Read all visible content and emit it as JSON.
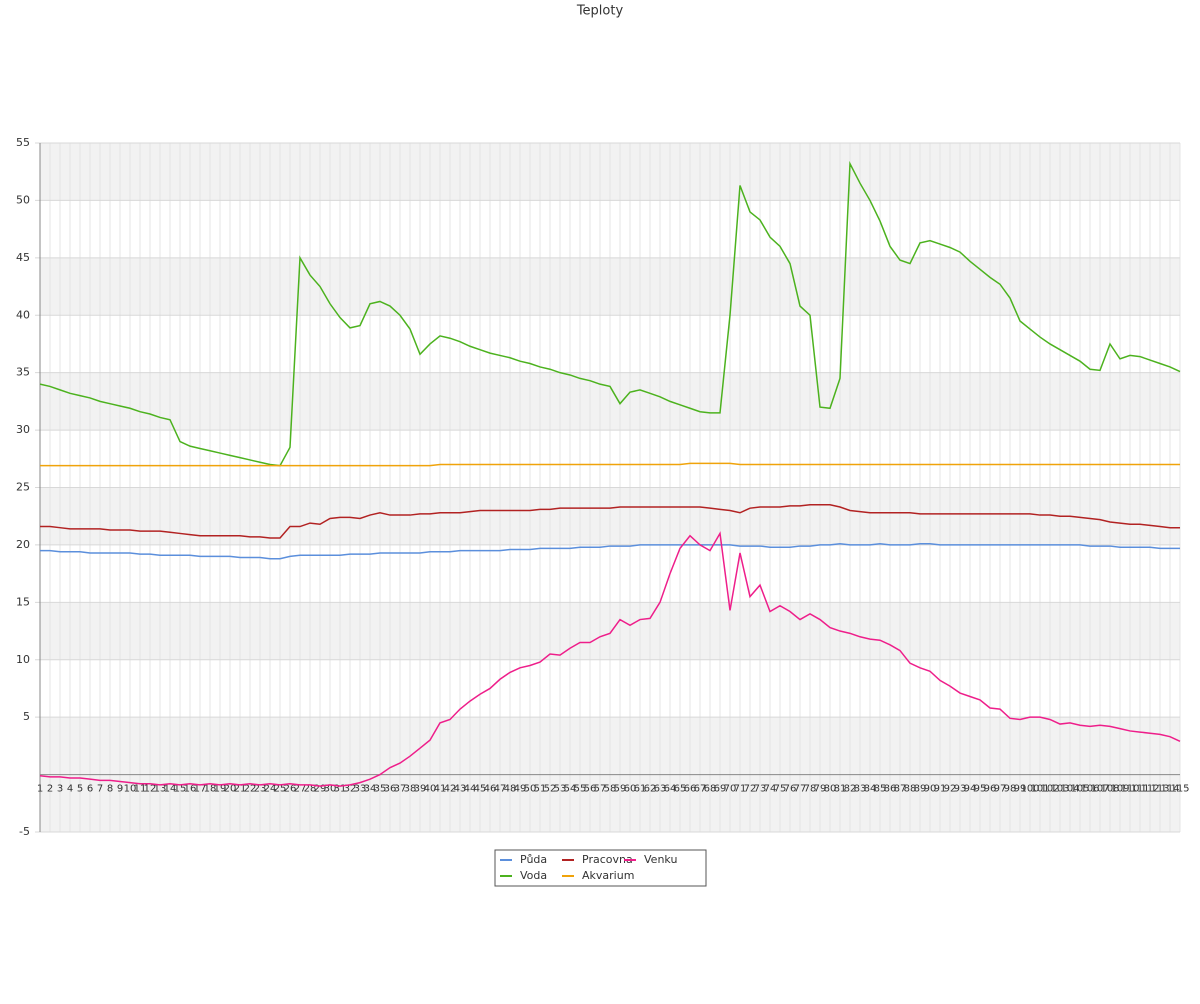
{
  "chart_data": {
    "type": "line",
    "title": "Teploty",
    "categories": [
      1,
      2,
      3,
      4,
      5,
      6,
      7,
      8,
      9,
      10,
      11,
      12,
      13,
      14,
      15,
      16,
      17,
      18,
      19,
      20,
      21,
      22,
      23,
      24,
      25,
      26,
      27,
      28,
      29,
      30,
      31,
      32,
      33,
      34,
      35,
      36,
      37,
      38,
      39,
      40,
      41,
      42,
      43,
      44,
      45,
      46,
      47,
      48,
      49,
      50,
      51,
      52,
      53,
      54,
      55,
      56,
      57,
      58,
      59,
      60,
      61,
      62,
      63,
      64,
      65,
      66,
      67,
      68,
      69,
      70,
      71,
      72,
      73,
      74,
      75,
      76,
      77,
      78,
      79,
      80,
      81,
      82,
      83,
      84,
      85,
      86,
      87,
      88,
      89,
      90,
      91,
      92,
      93,
      94,
      95,
      96,
      97,
      98,
      99,
      100,
      101,
      102,
      103,
      104,
      105,
      106,
      107,
      108,
      109,
      110,
      111,
      112,
      113,
      114,
      115
    ],
    "ylim": [
      -5,
      55
    ],
    "yticks": [
      -5,
      5,
      10,
      15,
      20,
      25,
      30,
      35,
      40,
      45,
      50,
      55
    ],
    "grid": true,
    "series": [
      {
        "name": "Půda",
        "color": "#5b8fdc",
        "values": [
          19.5,
          19.5,
          19.4,
          19.4,
          19.4,
          19.3,
          19.3,
          19.3,
          19.3,
          19.3,
          19.2,
          19.2,
          19.1,
          19.1,
          19.1,
          19.1,
          19.0,
          19.0,
          19.0,
          19.0,
          18.9,
          18.9,
          18.9,
          18.8,
          18.8,
          19.0,
          19.1,
          19.1,
          19.1,
          19.1,
          19.1,
          19.2,
          19.2,
          19.2,
          19.3,
          19.3,
          19.3,
          19.3,
          19.3,
          19.4,
          19.4,
          19.4,
          19.5,
          19.5,
          19.5,
          19.5,
          19.5,
          19.6,
          19.6,
          19.6,
          19.7,
          19.7,
          19.7,
          19.7,
          19.8,
          19.8,
          19.8,
          19.9,
          19.9,
          19.9,
          20.0,
          20.0,
          20.0,
          20.0,
          20.0,
          20.0,
          20.0,
          20.0,
          20.0,
          20.0,
          19.9,
          19.9,
          19.9,
          19.8,
          19.8,
          19.8,
          19.9,
          19.9,
          20.0,
          20.0,
          20.1,
          20.0,
          20.0,
          20.0,
          20.1,
          20.0,
          20.0,
          20.0,
          20.1,
          20.1,
          20.0,
          20.0,
          20.0,
          20.0,
          20.0,
          20.0,
          20.0,
          20.0,
          20.0,
          20.0,
          20.0,
          20.0,
          20.0,
          20.0,
          20.0,
          19.9,
          19.9,
          19.9,
          19.8,
          19.8,
          19.8,
          19.8,
          19.7,
          19.7,
          19.7
        ]
      },
      {
        "name": "Voda",
        "color": "#4cb21e",
        "values": [
          34.0,
          33.8,
          33.5,
          33.2,
          33.0,
          32.8,
          32.5,
          32.3,
          32.1,
          31.9,
          31.6,
          31.4,
          31.1,
          30.9,
          29.0,
          28.6,
          28.4,
          28.2,
          28.0,
          27.8,
          27.6,
          27.4,
          27.2,
          27.0,
          26.9,
          28.5,
          45.0,
          43.5,
          42.5,
          41.0,
          39.8,
          38.9,
          39.1,
          41.0,
          41.2,
          40.8,
          40.0,
          38.8,
          36.6,
          37.5,
          38.2,
          38.0,
          37.7,
          37.3,
          37.0,
          36.7,
          36.5,
          36.3,
          36.0,
          35.8,
          35.5,
          35.3,
          35.0,
          34.8,
          34.5,
          34.3,
          34.0,
          33.8,
          32.3,
          33.3,
          33.5,
          33.2,
          32.9,
          32.5,
          32.2,
          31.9,
          31.6,
          31.5,
          31.5,
          40.0,
          51.3,
          49.0,
          48.3,
          46.8,
          46.0,
          44.5,
          40.8,
          40.0,
          32.0,
          31.9,
          34.5,
          53.2,
          51.5,
          50.0,
          48.2,
          46.0,
          44.8,
          44.5,
          46.3,
          46.5,
          46.2,
          45.9,
          45.5,
          44.7,
          44.0,
          43.3,
          42.7,
          41.5,
          39.5,
          38.8,
          38.1,
          37.5,
          37.0,
          36.5,
          36.0,
          35.3,
          35.2,
          37.5,
          36.2,
          36.5,
          36.4,
          36.1,
          35.8,
          35.5,
          35.1
        ]
      },
      {
        "name": "Pracovna",
        "color": "#b22222",
        "values": [
          21.6,
          21.6,
          21.5,
          21.4,
          21.4,
          21.4,
          21.4,
          21.3,
          21.3,
          21.3,
          21.2,
          21.2,
          21.2,
          21.1,
          21.0,
          20.9,
          20.8,
          20.8,
          20.8,
          20.8,
          20.8,
          20.7,
          20.7,
          20.6,
          20.6,
          21.6,
          21.6,
          21.9,
          21.8,
          22.3,
          22.4,
          22.4,
          22.3,
          22.6,
          22.8,
          22.6,
          22.6,
          22.6,
          22.7,
          22.7,
          22.8,
          22.8,
          22.8,
          22.9,
          23.0,
          23.0,
          23.0,
          23.0,
          23.0,
          23.0,
          23.1,
          23.1,
          23.2,
          23.2,
          23.2,
          23.2,
          23.2,
          23.2,
          23.3,
          23.3,
          23.3,
          23.3,
          23.3,
          23.3,
          23.3,
          23.3,
          23.3,
          23.2,
          23.1,
          23.0,
          22.8,
          23.2,
          23.3,
          23.3,
          23.3,
          23.4,
          23.4,
          23.5,
          23.5,
          23.5,
          23.3,
          23.0,
          22.9,
          22.8,
          22.8,
          22.8,
          22.8,
          22.8,
          22.7,
          22.7,
          22.7,
          22.7,
          22.7,
          22.7,
          22.7,
          22.7,
          22.7,
          22.7,
          22.7,
          22.7,
          22.6,
          22.6,
          22.5,
          22.5,
          22.4,
          22.3,
          22.2,
          22.0,
          21.9,
          21.8,
          21.8,
          21.7,
          21.6,
          21.5,
          21.5
        ]
      },
      {
        "name": "Akvarium",
        "color": "#f0a30a",
        "values": [
          26.9,
          26.9,
          26.9,
          26.9,
          26.9,
          26.9,
          26.9,
          26.9,
          26.9,
          26.9,
          26.9,
          26.9,
          26.9,
          26.9,
          26.9,
          26.9,
          26.9,
          26.9,
          26.9,
          26.9,
          26.9,
          26.9,
          26.9,
          26.9,
          26.9,
          26.9,
          26.9,
          26.9,
          26.9,
          26.9,
          26.9,
          26.9,
          26.9,
          26.9,
          26.9,
          26.9,
          26.9,
          26.9,
          26.9,
          26.9,
          27.0,
          27.0,
          27.0,
          27.0,
          27.0,
          27.0,
          27.0,
          27.0,
          27.0,
          27.0,
          27.0,
          27.0,
          27.0,
          27.0,
          27.0,
          27.0,
          27.0,
          27.0,
          27.0,
          27.0,
          27.0,
          27.0,
          27.0,
          27.0,
          27.0,
          27.1,
          27.1,
          27.1,
          27.1,
          27.1,
          27.0,
          27.0,
          27.0,
          27.0,
          27.0,
          27.0,
          27.0,
          27.0,
          27.0,
          27.0,
          27.0,
          27.0,
          27.0,
          27.0,
          27.0,
          27.0,
          27.0,
          27.0,
          27.0,
          27.0,
          27.0,
          27.0,
          27.0,
          27.0,
          27.0,
          27.0,
          27.0,
          27.0,
          27.0,
          27.0,
          27.0,
          27.0,
          27.0,
          27.0,
          27.0,
          27.0,
          27.0,
          27.0,
          27.0,
          27.0,
          27.0,
          27.0,
          27.0,
          27.0,
          27.0
        ]
      },
      {
        "name": "Venku",
        "color": "#ee1e8a",
        "values": [
          -0.1,
          -0.2,
          -0.2,
          -0.3,
          -0.3,
          -0.4,
          -0.5,
          -0.5,
          -0.6,
          -0.7,
          -0.8,
          -0.8,
          -0.9,
          -0.8,
          -0.9,
          -0.8,
          -0.9,
          -0.8,
          -0.9,
          -0.8,
          -0.9,
          -0.8,
          -0.9,
          -0.8,
          -0.9,
          -0.8,
          -0.9,
          -0.9,
          -1.0,
          -0.9,
          -1.0,
          -0.9,
          -0.7,
          -0.4,
          0.0,
          0.6,
          1.0,
          1.6,
          2.3,
          3.0,
          4.5,
          4.8,
          5.7,
          6.4,
          7.0,
          7.5,
          8.3,
          8.9,
          9.3,
          9.5,
          9.8,
          10.5,
          10.4,
          11.0,
          11.5,
          11.5,
          12.0,
          12.3,
          13.5,
          13.0,
          13.5,
          13.6,
          15.0,
          17.5,
          19.7,
          20.8,
          20.0,
          19.5,
          21.0,
          14.3,
          19.3,
          15.5,
          16.5,
          14.2,
          14.7,
          14.2,
          13.5,
          14.0,
          13.5,
          12.8,
          12.5,
          12.3,
          12.0,
          11.8,
          11.7,
          11.3,
          10.8,
          9.7,
          9.3,
          9.0,
          8.2,
          7.7,
          7.1,
          6.8,
          6.5,
          5.8,
          5.7,
          4.9,
          4.8,
          5.0,
          5.0,
          4.8,
          4.4,
          4.5,
          4.3,
          4.2,
          4.3,
          4.2,
          4.0,
          3.8,
          3.7,
          3.6,
          3.5,
          3.3,
          2.9
        ]
      }
    ]
  }
}
